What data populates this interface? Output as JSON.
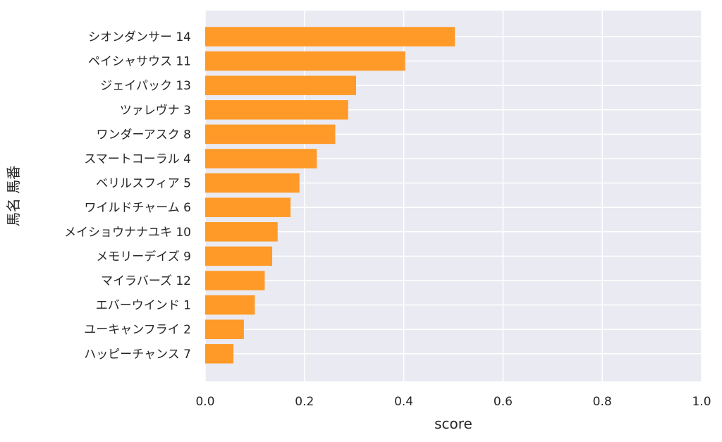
{
  "chart_data": {
    "type": "bar",
    "orientation": "horizontal",
    "categories": [
      "シオンダンサー 14",
      "ペイシャサウス 11",
      "ジェイパック 13",
      "ツァレヴナ 3",
      "ワンダーアスク 8",
      "スマートコーラル 4",
      "ベリルスフィア 5",
      "ワイルドチャーム 6",
      "メイショウナナユキ 10",
      "メモリーデイズ 9",
      "マイラバーズ 12",
      "エバーウインド 1",
      "ユーキャンフライ 2",
      "ハッピーチャンス 7"
    ],
    "values": [
      0.503,
      0.403,
      0.304,
      0.288,
      0.262,
      0.225,
      0.19,
      0.172,
      0.146,
      0.135,
      0.12,
      0.1,
      0.078,
      0.057
    ],
    "xlabel": "score",
    "ylabel": "馬名 馬番",
    "xlim": [
      0,
      1.0
    ],
    "xticks": [
      "0.0",
      "0.2",
      "0.4",
      "0.6",
      "0.8",
      "1.0"
    ],
    "grid": true,
    "colors": {
      "bar": "#ff9a28",
      "background": "#eaeaf2",
      "grid": "#ffffff",
      "text": "#262626"
    }
  }
}
